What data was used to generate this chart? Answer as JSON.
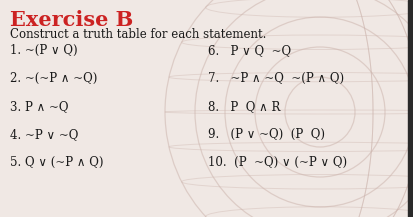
{
  "title": "Exercise B",
  "subtitle": "Construct a truth table for each statement.",
  "title_color": "#cc2222",
  "text_color": "#1a1a1a",
  "bg_color": "#f0e8e4",
  "globe_color": "#cdb5ae",
  "left_items": [
    "1. ~(P ∨ Q)",
    "2. ~(~P ∧ ~Q)",
    "3. P ∧ ~Q",
    "4. ~P ∨ ~Q",
    "5. Q ∨ (~P ∧ Q)"
  ],
  "right_items": [
    "6.   P ∨ Q  ~Q",
    "7.   ~P ∧ ~Q  ~(P ∧ Q)",
    "8.   P  Q ∧ R",
    "9.   (P ∨ ~Q)  (P  Q)",
    "10.  (P  ~Q) ∨ (~P ∨ Q)"
  ],
  "title_fontsize": 15,
  "subtitle_fontsize": 8.5,
  "item_fontsize": 8.5,
  "figsize": [
    4.14,
    2.17
  ],
  "dpi": 100
}
